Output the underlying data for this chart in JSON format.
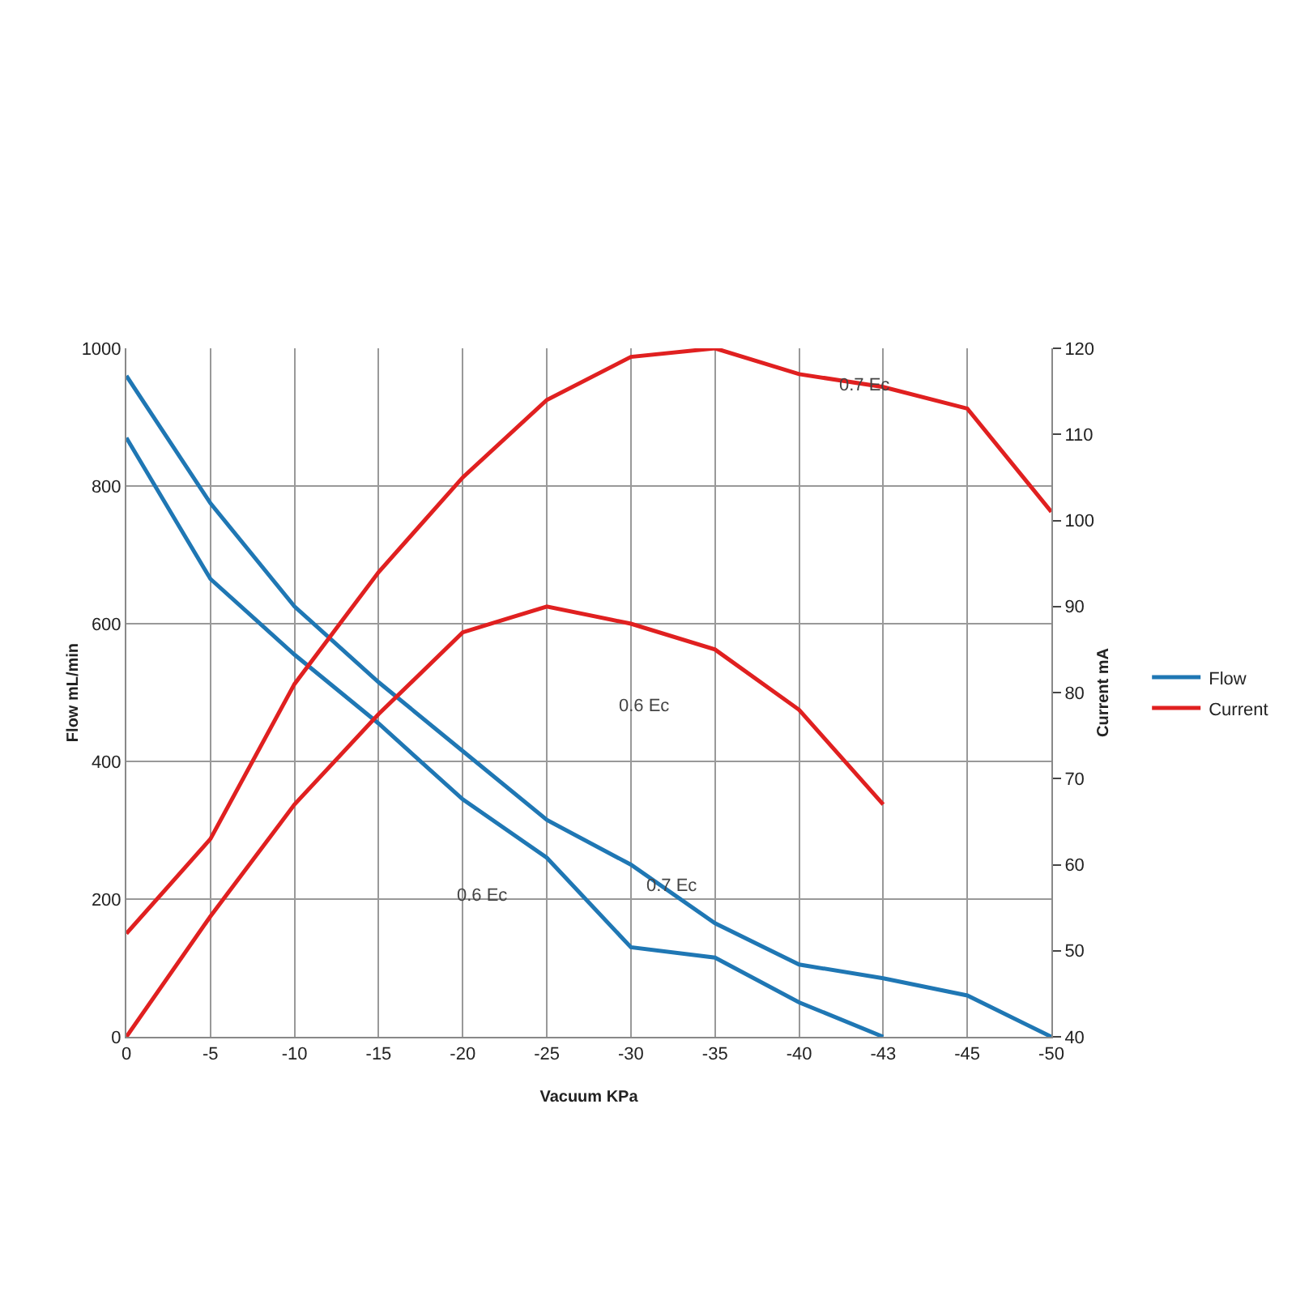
{
  "chart_data": {
    "type": "line",
    "xlabel": "Vacuum KPa",
    "ylabel": "Flow mL/min",
    "y2label": "Current mA",
    "categories": [
      "0",
      "-5",
      "-10",
      "-15",
      "-20",
      "-25",
      "-30",
      "-35",
      "-40",
      "-43",
      "-45",
      "-50"
    ],
    "series": [
      {
        "name": "Flow",
        "color": "#1f77b4",
        "values": [
          960,
          775,
          625,
          515,
          415,
          315,
          250,
          165,
          105,
          85,
          60,
          0
        ]
      },
      {
        "color": "#1f77b4",
        "values": [
          870,
          665,
          555,
          455,
          345,
          260,
          130,
          115,
          50,
          0,
          null,
          null
        ]
      },
      {
        "name": "Current",
        "color": "#e02020",
        "axis": "y2",
        "values": [
          52,
          63,
          81,
          94,
          105,
          114,
          119,
          120,
          117,
          115.5,
          113,
          101
        ]
      },
      {
        "color": "#e02020",
        "axis": "y2",
        "values": [
          40,
          54,
          67,
          77.5,
          87,
          90,
          88,
          85,
          78,
          67,
          null,
          null
        ]
      }
    ],
    "ylim": [
      0,
      1000
    ],
    "yticks": [
      0,
      200,
      400,
      600,
      800,
      1000
    ],
    "y2lim": [
      40,
      120
    ],
    "y2ticks": [
      40,
      50,
      60,
      70,
      80,
      90,
      100,
      110,
      120
    ],
    "annotations": [
      "0.7 Ec",
      "0.6 Ec",
      "0.6 Ec",
      "0.7 Ec"
    ],
    "grid": true,
    "legend": "right",
    "marker": "none",
    "line_style": "solid"
  }
}
